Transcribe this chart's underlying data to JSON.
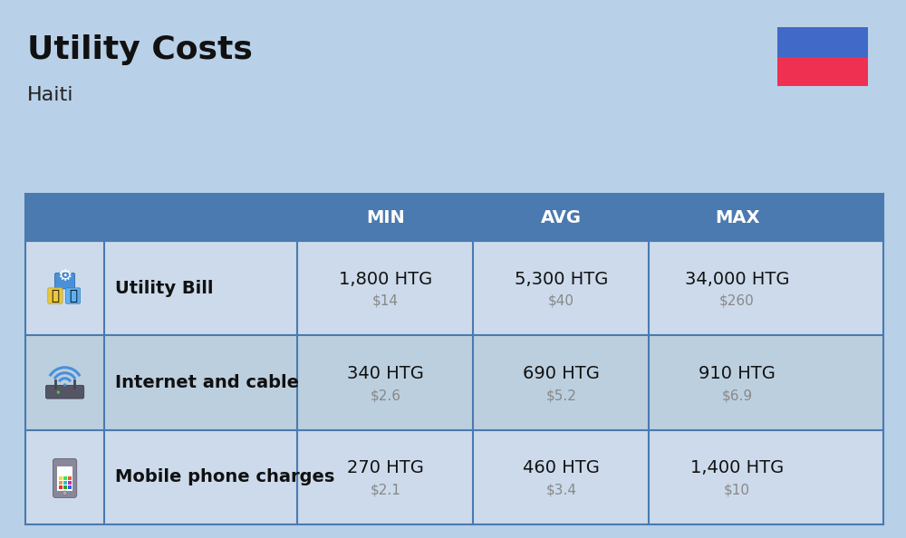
{
  "title": "Utility Costs",
  "subtitle": "Haiti",
  "background_color": "#b8d0e8",
  "header_bg_color": "#4a7aaf",
  "header_text_color": "#ffffff",
  "row_bg_color_1": "#ccdaeb",
  "row_bg_color_2": "#bccfdf",
  "table_border_color": "#4a7aaf",
  "flag_blue": "#4169c8",
  "flag_red": "#f03050",
  "rows": [
    {
      "label": "Utility Bill",
      "min_htg": "1,800 HTG",
      "min_usd": "$14",
      "avg_htg": "5,300 HTG",
      "avg_usd": "$40",
      "max_htg": "34,000 HTG",
      "max_usd": "$260"
    },
    {
      "label": "Internet and cable",
      "min_htg": "340 HTG",
      "min_usd": "$2.6",
      "avg_htg": "690 HTG",
      "avg_usd": "$5.2",
      "max_htg": "910 HTG",
      "max_usd": "$6.9"
    },
    {
      "label": "Mobile phone charges",
      "min_htg": "270 HTG",
      "min_usd": "$2.1",
      "avg_htg": "460 HTG",
      "avg_usd": "$3.4",
      "max_htg": "1,400 HTG",
      "max_usd": "$10"
    }
  ],
  "usd_color": "#888888",
  "htg_fontsize": 14,
  "usd_fontsize": 11,
  "label_fontsize": 14,
  "header_fontsize": 14,
  "title_fontsize": 26,
  "subtitle_fontsize": 16
}
